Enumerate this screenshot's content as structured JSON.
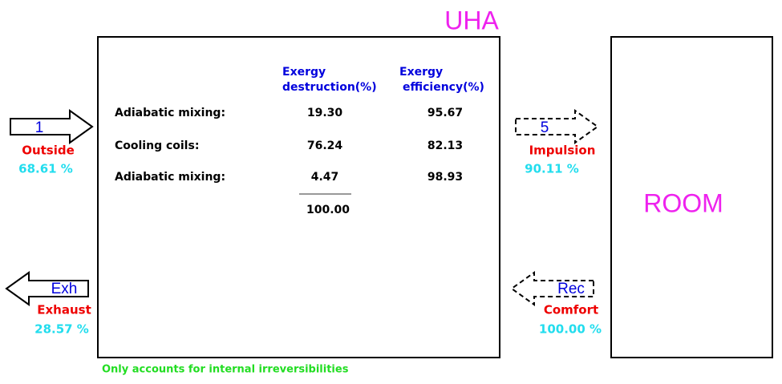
{
  "unit": {
    "title": "UHA",
    "headers": [
      [
        "Exergy",
        "destruction(%)"
      ],
      [
        "Exergy",
        "efficiency(%)"
      ]
    ],
    "rows": [
      [
        "Adiabatic mixing:",
        "19.30",
        "95.67"
      ],
      [
        "Cooling coils:",
        "76.24",
        "82.13"
      ],
      [
        "Adiabatic mixing:",
        "4.47",
        "98.93"
      ]
    ],
    "total": "100.00",
    "note": "Only accounts for internal irreversibilities"
  },
  "room": {
    "label": "ROOM"
  },
  "streams": [
    {
      "id": "1",
      "name": "Outside",
      "value": "68.61 %"
    },
    {
      "id": "5",
      "name": "Impulsion",
      "value": "90.11 %"
    },
    {
      "id": "Exh",
      "name": "Exhaust",
      "value": "28.57 %"
    },
    {
      "id": "Rec",
      "name": "Comfort",
      "value": "100.00 %"
    }
  ]
}
